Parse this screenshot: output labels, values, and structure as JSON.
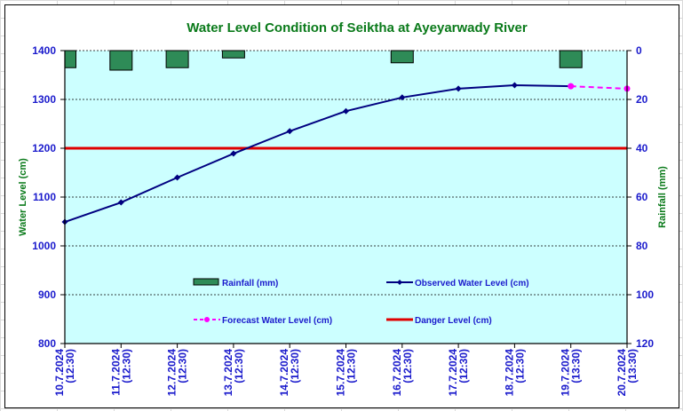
{
  "chart_data": {
    "type": "line",
    "title": "Water Level Condition of Seiktha at Ayeyarwady River",
    "categories": [
      "10.7.2024\n(12:30)",
      "11.7.2024\n(12:30)",
      "12.7.2024\n(12:30)",
      "13.7.2024\n(12:30)",
      "14.7.2024\n(12:30)",
      "15.7.2024\n(12:30)",
      "16.7.2024\n(12:30)",
      "17.7.2024\n(12:30)",
      "18.7.2024\n(12:30)",
      "19.7.2024\n(13:30)",
      "20.7.2024\n(13:30)"
    ],
    "ylabel": "Water Level (cm)",
    "y2label": "Rainfall (mm)",
    "ylim": [
      800,
      1400
    ],
    "yticks": [
      800,
      900,
      1000,
      1100,
      1200,
      1300,
      1400
    ],
    "y2lim": [
      0,
      120
    ],
    "y2ticks": [
      0,
      20,
      40,
      60,
      80,
      100,
      120
    ],
    "y2_inverted": true,
    "grid": true,
    "legend_position": "inside-bottom",
    "series": [
      {
        "name": "Rainfall (mm)",
        "type": "bar",
        "axis": "right",
        "color": "#2e8b57",
        "values": [
          7,
          8,
          7,
          3,
          null,
          null,
          5,
          null,
          null,
          7,
          null
        ]
      },
      {
        "name": "Observed Water Level (cm)",
        "type": "line",
        "axis": "left",
        "color": "#000080",
        "values": [
          1049,
          1089,
          1140,
          1189,
          1235,
          1276,
          1304,
          1322,
          1329,
          1327,
          null
        ]
      },
      {
        "name": "Forecast Water Level (cm)",
        "type": "line-dashed",
        "axis": "left",
        "color": "#ff00ff",
        "values": [
          null,
          null,
          null,
          null,
          null,
          null,
          null,
          null,
          null,
          1327,
          1322
        ]
      },
      {
        "name": "Danger Level (cm)",
        "type": "hline",
        "axis": "left",
        "color": "#e00000",
        "value": 1200
      }
    ]
  }
}
